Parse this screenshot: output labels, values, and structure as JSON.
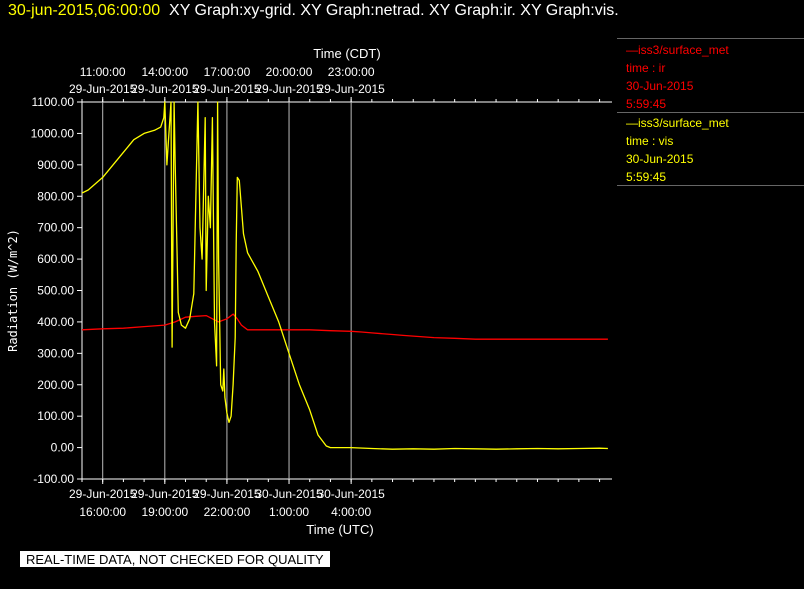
{
  "header": {
    "date": "30-jun-2015,06:00:00",
    "graphs": "XY Graph:xy-grid.  XY Graph:netrad.  XY Graph:ir.  XY Graph:vis."
  },
  "legend": [
    {
      "source": "—iss3/surface_met",
      "var": "time : ir",
      "date": "30-Jun-2015",
      "time": "5:59:45",
      "color": "#ff0000"
    },
    {
      "source": "—iss3/surface_met",
      "var": "time : vis",
      "date": "30-Jun-2015",
      "time": "5:59:45",
      "color": "#ffff00"
    }
  ],
  "disclaimer": "REAL-TIME DATA, NOT CHECKED FOR QUALITY",
  "chart_data": {
    "type": "line",
    "ylabel": "Radiation  (W/m^2)",
    "top_axis_title": "Time (CDT)",
    "bottom_axis_title": "Time (UTC)",
    "ylim": [
      -100,
      1100
    ],
    "xlim_hours_utc": [
      15.0,
      40.6
    ],
    "yticks": [
      "1100.00",
      "1000.00",
      "900.00",
      "800.00",
      "700.00",
      "600.00",
      "500.00",
      "400.00",
      "300.00",
      "200.00",
      "100.00",
      "0.00",
      "-100.00"
    ],
    "top_ticks": [
      {
        "time": "11:00:00",
        "date": "29-Jun-2015",
        "utc": 16
      },
      {
        "time": "14:00:00",
        "date": "29-Jun-2015",
        "utc": 19
      },
      {
        "time": "17:00:00",
        "date": "29-Jun-2015",
        "utc": 22
      },
      {
        "time": "20:00:00",
        "date": "29-Jun-2015",
        "utc": 25
      },
      {
        "time": "23:00:00",
        "date": "29-Jun-2015",
        "utc": 28
      }
    ],
    "bottom_ticks": [
      {
        "date": "29-Jun-2015",
        "time": "16:00:00",
        "utc": 16
      },
      {
        "date": "29-Jun-2015",
        "time": "19:00:00",
        "utc": 19
      },
      {
        "date": "29-Jun-2015",
        "time": "22:00:00",
        "utc": 22
      },
      {
        "date": "30-Jun-2015",
        "time": "1:00:00",
        "utc": 25
      },
      {
        "date": "30-Jun-2015",
        "time": "4:00:00",
        "utc": 28
      }
    ],
    "grid": true,
    "series": [
      {
        "color": "#ff0000",
        "x": [
          15.0,
          16.0,
          17.0,
          18.0,
          19.0,
          19.5,
          20.0,
          20.5,
          21.0,
          21.3,
          21.6,
          22.0,
          22.3,
          22.5,
          22.7,
          23.0,
          24.0,
          25.0,
          26.0,
          27.0,
          28.0,
          28.5,
          29.0,
          30.0,
          30.5,
          31.0,
          32.0,
          33.0,
          34.0,
          35.0,
          36.0,
          37.0,
          38.0,
          39.0,
          40.0,
          40.4
        ],
        "y": [
          375,
          378,
          380,
          385,
          390,
          400,
          415,
          418,
          420,
          410,
          400,
          410,
          425,
          410,
          390,
          375,
          375,
          375,
          375,
          372,
          370,
          368,
          365,
          360,
          357,
          355,
          350,
          348,
          345,
          345,
          345,
          345,
          345,
          345,
          345,
          345
        ]
      },
      {
        "color": "#ffff00",
        "x": [
          15.0,
          15.3,
          16.0,
          17.0,
          17.5,
          18.0,
          18.5,
          18.8,
          18.95,
          19.0,
          19.1,
          19.15,
          19.3,
          19.35,
          19.45,
          19.5,
          19.6,
          19.65,
          19.8,
          20.0,
          20.2,
          20.4,
          20.6,
          20.7,
          20.8,
          20.95,
          21.0,
          21.1,
          21.2,
          21.3,
          21.4,
          21.5,
          21.55,
          21.6,
          21.7,
          21.8,
          21.85,
          21.9,
          22.0,
          22.1,
          22.2,
          22.3,
          22.4,
          22.45,
          22.5,
          22.6,
          22.8,
          23.0,
          23.5,
          24.0,
          24.5,
          25.0,
          25.5,
          26.0,
          26.4,
          26.8,
          27.0,
          28.0,
          29.0,
          30.0,
          31.0,
          32.0,
          33.0,
          34.0,
          35.0,
          36.0,
          37.0,
          38.0,
          39.0,
          40.0,
          40.4
        ],
        "y": [
          810,
          820,
          860,
          940,
          980,
          1000,
          1010,
          1020,
          1050,
          1100,
          900,
          950,
          1100,
          320,
          1100,
          900,
          600,
          430,
          390,
          380,
          410,
          490,
          1100,
          700,
          600,
          1050,
          500,
          800,
          700,
          1050,
          400,
          260,
          1100,
          600,
          200,
          180,
          250,
          160,
          110,
          80,
          100,
          200,
          350,
          650,
          860,
          850,
          680,
          620,
          560,
          480,
          400,
          300,
          200,
          120,
          40,
          5,
          0,
          0,
          -3,
          -5,
          -4,
          -5,
          -3,
          -4,
          -5,
          -4,
          -3,
          -4,
          -3,
          -2,
          -3
        ]
      }
    ]
  }
}
